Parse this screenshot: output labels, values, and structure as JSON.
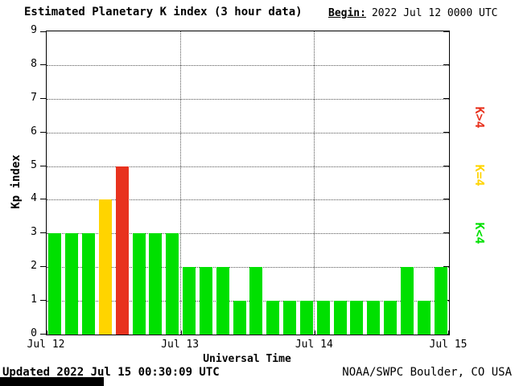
{
  "header": {
    "title": "Estimated Planetary K index (3 hour data)",
    "begin_label": "Begin:",
    "begin_value": "2022 Jul 12 0000 UTC"
  },
  "chart_data": {
    "type": "bar",
    "title": "Estimated Planetary K index (3 hour data)",
    "xlabel": "Universal Time",
    "ylabel": "Kp index",
    "ylim": [
      0,
      9
    ],
    "y_ticks": [
      0,
      1,
      2,
      3,
      4,
      5,
      6,
      7,
      8,
      9
    ],
    "x_tick_labels": [
      "Jul 12",
      "Jul 13",
      "Jul 14",
      "Jul 15"
    ],
    "bin_hours": 3,
    "values": [
      3,
      3,
      3,
      4,
      5,
      3,
      3,
      3,
      2,
      2,
      2,
      1,
      2,
      1,
      1,
      1,
      1,
      1,
      1,
      1,
      1,
      2,
      1,
      2
    ],
    "colors": {
      "low": "#00e000",
      "mid": "#ffd400",
      "high": "#e8321e"
    },
    "color_rule": "value<4 low, value=4 mid, value>4 high",
    "grid": "dotted horizontal at each Kp level, dotted vertical at day boundaries",
    "legend_position": "right, rotated 90",
    "legend": [
      {
        "label": "K>4",
        "color": "#e8321e"
      },
      {
        "label": "K=4",
        "color": "#ffd400"
      },
      {
        "label": "K<4",
        "color": "#00e000"
      }
    ]
  },
  "footer": {
    "updated": "Updated 2022 Jul 15 00:30:09 UTC",
    "source": "NOAA/SWPC Boulder, CO USA"
  }
}
